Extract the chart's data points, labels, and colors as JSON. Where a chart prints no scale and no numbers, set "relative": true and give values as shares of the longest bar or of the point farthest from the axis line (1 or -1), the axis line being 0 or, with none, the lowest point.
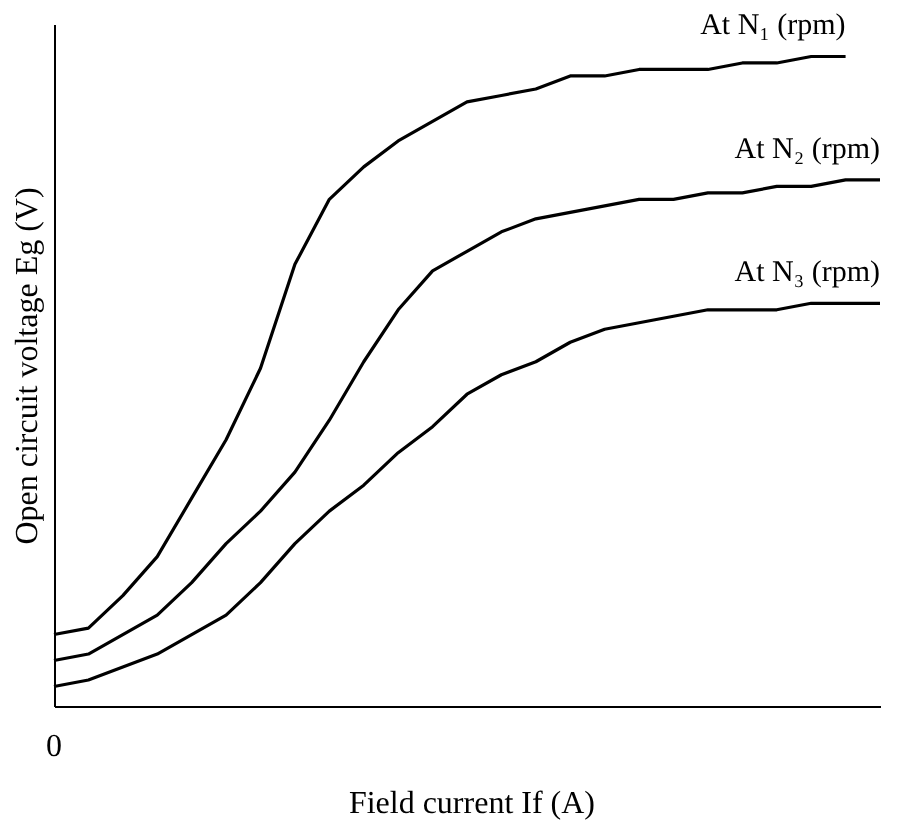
{
  "chart_data": {
    "type": "line",
    "relative": true,
    "xlabel": "Field current If (A)",
    "ylabel": "Open circuit voltage Eg (V)",
    "annotations": [
      "0"
    ],
    "legend": false,
    "grid": false,
    "marker": "none",
    "line_style": "solid",
    "categories": [
      null,
      null,
      null,
      null,
      null,
      null,
      null,
      null,
      null,
      null,
      null,
      null,
      null,
      null,
      null,
      null,
      null,
      null,
      null,
      null,
      null,
      null,
      null,
      null,
      null
    ],
    "series": [
      {
        "name": "At N₁ (rpm)",
        "color": "#000000",
        "values": [
          0.11,
          0.12,
          0.17,
          0.23,
          0.32,
          0.41,
          0.52,
          0.68,
          0.78,
          0.83,
          0.87,
          0.9,
          0.93,
          0.94,
          0.95,
          0.97,
          0.97,
          0.98,
          0.98,
          0.98,
          0.99,
          0.99,
          1.0,
          1.0,
          null
        ]
      },
      {
        "name": "At N₂ (rpm)",
        "color": "#000000",
        "values": [
          0.07,
          0.08,
          0.11,
          0.14,
          0.19,
          0.25,
          0.3,
          0.36,
          0.44,
          0.53,
          0.61,
          0.67,
          0.7,
          0.73,
          0.75,
          0.76,
          0.77,
          0.78,
          0.78,
          0.79,
          0.79,
          0.8,
          0.8,
          0.81,
          0.81
        ]
      },
      {
        "name": "At N₃ (rpm)",
        "color": "#000000",
        "values": [
          0.03,
          0.04,
          0.06,
          0.08,
          0.11,
          0.14,
          0.19,
          0.25,
          0.3,
          0.34,
          0.39,
          0.43,
          0.48,
          0.51,
          0.53,
          0.56,
          0.58,
          0.59,
          0.6,
          0.61,
          0.61,
          0.61,
          0.62,
          0.62,
          0.62
        ]
      }
    ]
  }
}
